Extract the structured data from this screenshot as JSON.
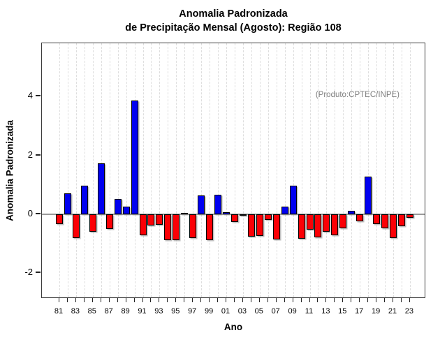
{
  "title": {
    "line1": "Anomalia Padronizada",
    "line2": "de Precipitação Mensal (Agosto): Região 108"
  },
  "annotation": "(Produto:CPTEC/INPE)",
  "chart_data": {
    "type": "bar",
    "title": "Anomalia Padronizada de Precipitação Mensal (Agosto): Região 108",
    "xlabel": "Ano",
    "ylabel": "Anomalia Padronizada",
    "annotation": "(Produto:CPTEC/INPE)",
    "grid": "vertical-dashed",
    "legend": "none",
    "ylim": [
      -2.9,
      5.8
    ],
    "yticks": [
      4,
      2,
      0,
      -2
    ],
    "xtick_label_step": 2,
    "categories": [
      "81",
      "82",
      "83",
      "84",
      "85",
      "86",
      "87",
      "88",
      "89",
      "90",
      "91",
      "92",
      "93",
      "94",
      "95",
      "96",
      "97",
      "98",
      "99",
      "00",
      "01",
      "02",
      "03",
      "04",
      "05",
      "06",
      "07",
      "08",
      "09",
      "10",
      "11",
      "12",
      "13",
      "14",
      "15",
      "16",
      "17",
      "18",
      "19",
      "20",
      "21",
      "22",
      "23"
    ],
    "values": [
      -0.33,
      0.7,
      -0.8,
      0.97,
      -0.6,
      1.72,
      -0.5,
      0.51,
      0.25,
      3.86,
      -0.7,
      -0.37,
      -0.35,
      -0.87,
      -0.87,
      0.05,
      -0.8,
      0.63,
      -0.87,
      0.67,
      0.06,
      -0.25,
      -0.05,
      -0.77,
      -0.74,
      -0.18,
      -0.85,
      0.25,
      0.98,
      -0.83,
      -0.51,
      -0.78,
      -0.6,
      -0.72,
      -0.48,
      0.12,
      -0.24,
      1.28,
      -0.32,
      -0.48,
      -0.8,
      -0.4,
      -0.11
    ],
    "colors": {
      "positive": "#0000f0",
      "negative": "#fb0006",
      "zero_line": "#9a9a9a",
      "annotation_text": "#808080",
      "bar_border": "#000000"
    }
  }
}
